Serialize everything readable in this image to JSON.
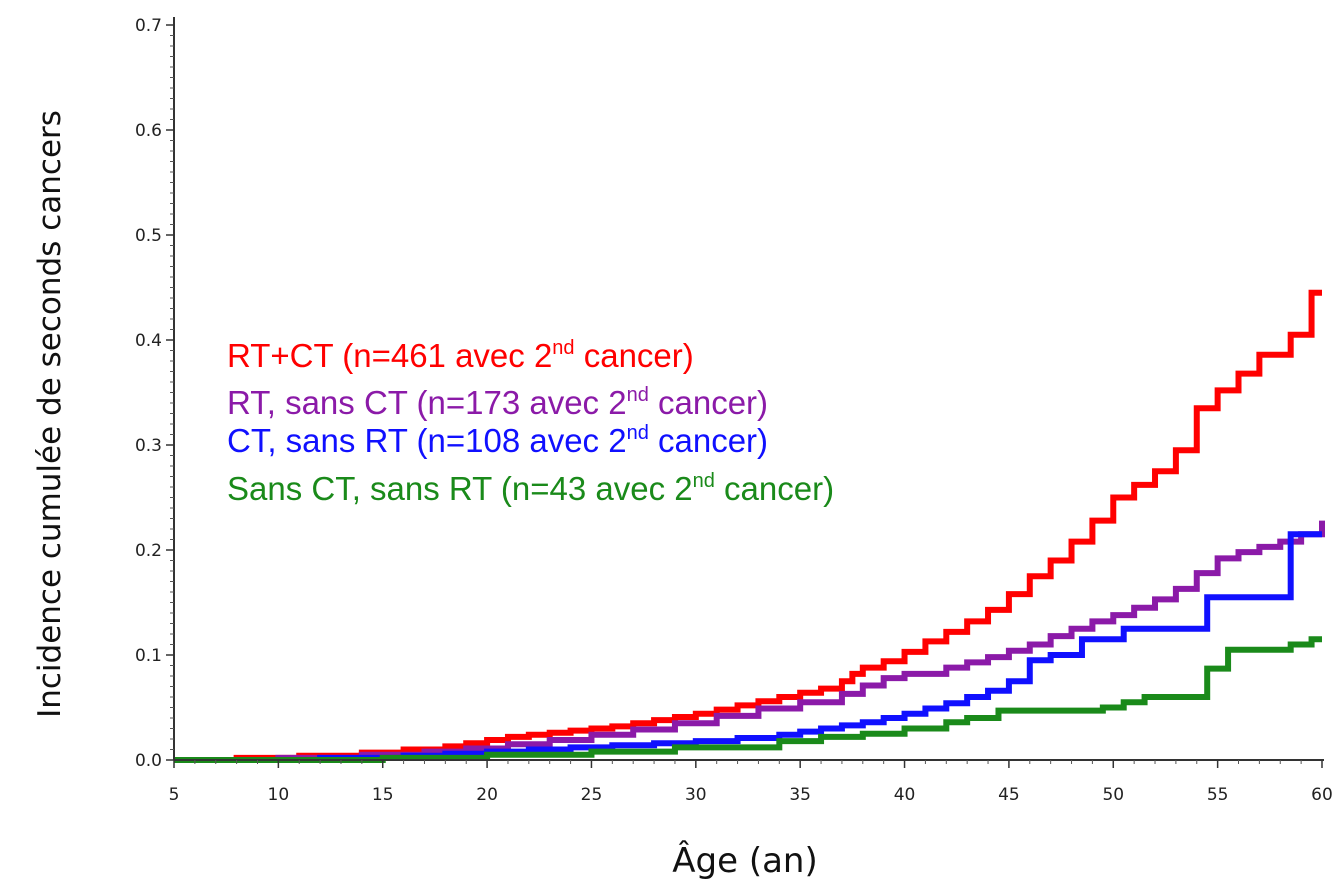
{
  "chart_data": {
    "type": "line",
    "step": true,
    "title": "",
    "xlabel": "Âge (an)",
    "ylabel": "Incidence cumulée de seconds cancers",
    "xlim": [
      5,
      60
    ],
    "ylim": [
      0,
      0.7
    ],
    "xticks": [
      "5",
      "10",
      "15",
      "20",
      "25",
      "30",
      "35",
      "40",
      "45",
      "50",
      "55",
      "60"
    ],
    "yticks": [
      "0.0",
      "0.1",
      "0.2",
      "0.3",
      "0.4",
      "0.5",
      "0.6",
      "0.7"
    ],
    "grid": false,
    "legend_position": "center-left",
    "series": [
      {
        "name": "RT+CT (n=461 avec 2nd cancer)",
        "legend_pre": "RT+CT (n=461 avec 2",
        "legend_sup": "nd",
        "legend_post": " cancer)",
        "color": "#ff0000",
        "x": [
          5,
          8,
          11,
          14,
          16,
          18,
          19,
          20,
          21,
          22,
          23,
          24,
          25,
          26,
          27,
          28,
          29,
          30,
          31,
          32,
          33,
          34,
          35,
          36,
          37,
          37.5,
          38,
          39,
          40,
          41,
          42,
          43,
          44,
          45,
          46,
          47,
          48,
          49,
          50,
          51,
          52,
          53,
          54,
          55,
          56,
          57,
          58.5,
          59.5,
          60
        ],
        "y": [
          0.0,
          0.002,
          0.004,
          0.007,
          0.01,
          0.013,
          0.016,
          0.019,
          0.022,
          0.024,
          0.026,
          0.028,
          0.03,
          0.032,
          0.035,
          0.038,
          0.041,
          0.044,
          0.048,
          0.052,
          0.056,
          0.06,
          0.064,
          0.068,
          0.075,
          0.082,
          0.088,
          0.094,
          0.103,
          0.113,
          0.122,
          0.132,
          0.143,
          0.158,
          0.175,
          0.19,
          0.208,
          0.228,
          0.25,
          0.262,
          0.275,
          0.295,
          0.335,
          0.352,
          0.368,
          0.386,
          0.405,
          0.445,
          0.445
        ]
      },
      {
        "name": "RT, sans CT (n=173 avec 2nd cancer)",
        "legend_pre": "RT, sans CT (n=173 avec 2",
        "legend_sup": "nd",
        "legend_post": " cancer)",
        "color": "#8b1aa8",
        "x": [
          5,
          10,
          14,
          17,
          19,
          21,
          23,
          25,
          27,
          29,
          31,
          33,
          35,
          37,
          38,
          39,
          40,
          42,
          43,
          44,
          45,
          46,
          47,
          48,
          49,
          50,
          51,
          52,
          53,
          54,
          55,
          56,
          57,
          58,
          59,
          60
        ],
        "y": [
          0.0,
          0.002,
          0.005,
          0.008,
          0.011,
          0.015,
          0.019,
          0.024,
          0.029,
          0.035,
          0.042,
          0.049,
          0.055,
          0.063,
          0.071,
          0.078,
          0.082,
          0.088,
          0.093,
          0.098,
          0.104,
          0.11,
          0.118,
          0.125,
          0.132,
          0.138,
          0.145,
          0.153,
          0.163,
          0.178,
          0.192,
          0.198,
          0.203,
          0.208,
          0.215,
          0.228
        ]
      },
      {
        "name": "CT, sans RT (n=108 avec 2nd cancer)",
        "legend_pre": "CT, sans RT (n=108 avec 2",
        "legend_sup": "nd",
        "legend_post": " cancer)",
        "color": "#1010ff",
        "x": [
          5,
          12,
          16,
          18,
          20,
          22,
          24,
          26,
          28,
          30,
          32,
          34,
          35,
          36,
          37,
          38,
          39,
          40,
          41,
          42,
          43,
          44,
          45,
          46,
          47,
          48.5,
          50.5,
          54.5,
          58.5,
          60
        ],
        "y": [
          0.0,
          0.002,
          0.004,
          0.006,
          0.008,
          0.01,
          0.012,
          0.014,
          0.016,
          0.018,
          0.021,
          0.024,
          0.027,
          0.03,
          0.033,
          0.036,
          0.04,
          0.044,
          0.049,
          0.054,
          0.06,
          0.066,
          0.075,
          0.095,
          0.1,
          0.115,
          0.125,
          0.155,
          0.215,
          0.215
        ]
      },
      {
        "name": "Sans CT, sans RT (n=43 avec 2nd cancer)",
        "legend_pre": "Sans CT, sans RT (n=43 avec 2",
        "legend_sup": "nd",
        "legend_post": " cancer)",
        "color": "#1a8a1a",
        "x": [
          5,
          15,
          20,
          25,
          29,
          34,
          36,
          38,
          40,
          42,
          43,
          44.5,
          49.5,
          50.5,
          51.5,
          54.5,
          55.5,
          58.5,
          59.5,
          60
        ],
        "y": [
          0.0,
          0.002,
          0.005,
          0.008,
          0.012,
          0.018,
          0.022,
          0.025,
          0.03,
          0.036,
          0.04,
          0.047,
          0.05,
          0.055,
          0.06,
          0.087,
          0.105,
          0.11,
          0.115,
          0.115
        ]
      }
    ]
  }
}
